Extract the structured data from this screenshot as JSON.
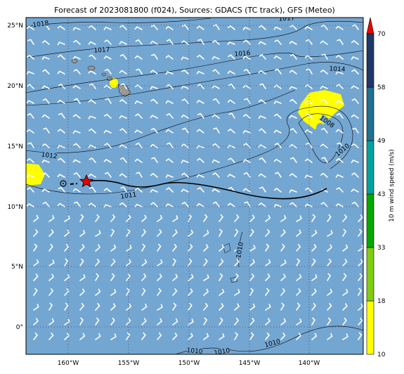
{
  "title": "Forecast of 2023081800 (f024), Sources: GDACS (TC track), GFS (Meteo)",
  "map": {
    "lon_labels": [
      "160°W",
      "155°W",
      "150°W",
      "145°W",
      "140°W"
    ],
    "lat_labels": [
      "25°N",
      "20°N",
      "15°N",
      "10°N",
      "5°N",
      "0°"
    ],
    "isobar_labels": [
      "1018",
      "1017",
      "1016",
      "1014",
      "1017",
      "1012",
      "1011",
      "1008",
      "1010",
      "1010",
      "1010",
      "1010",
      "1010"
    ]
  },
  "colorbar": {
    "label": "10 m wind speed (m/s)",
    "ticks": [
      "10",
      "18",
      "33",
      "43",
      "49",
      "58",
      "70"
    ]
  }
}
